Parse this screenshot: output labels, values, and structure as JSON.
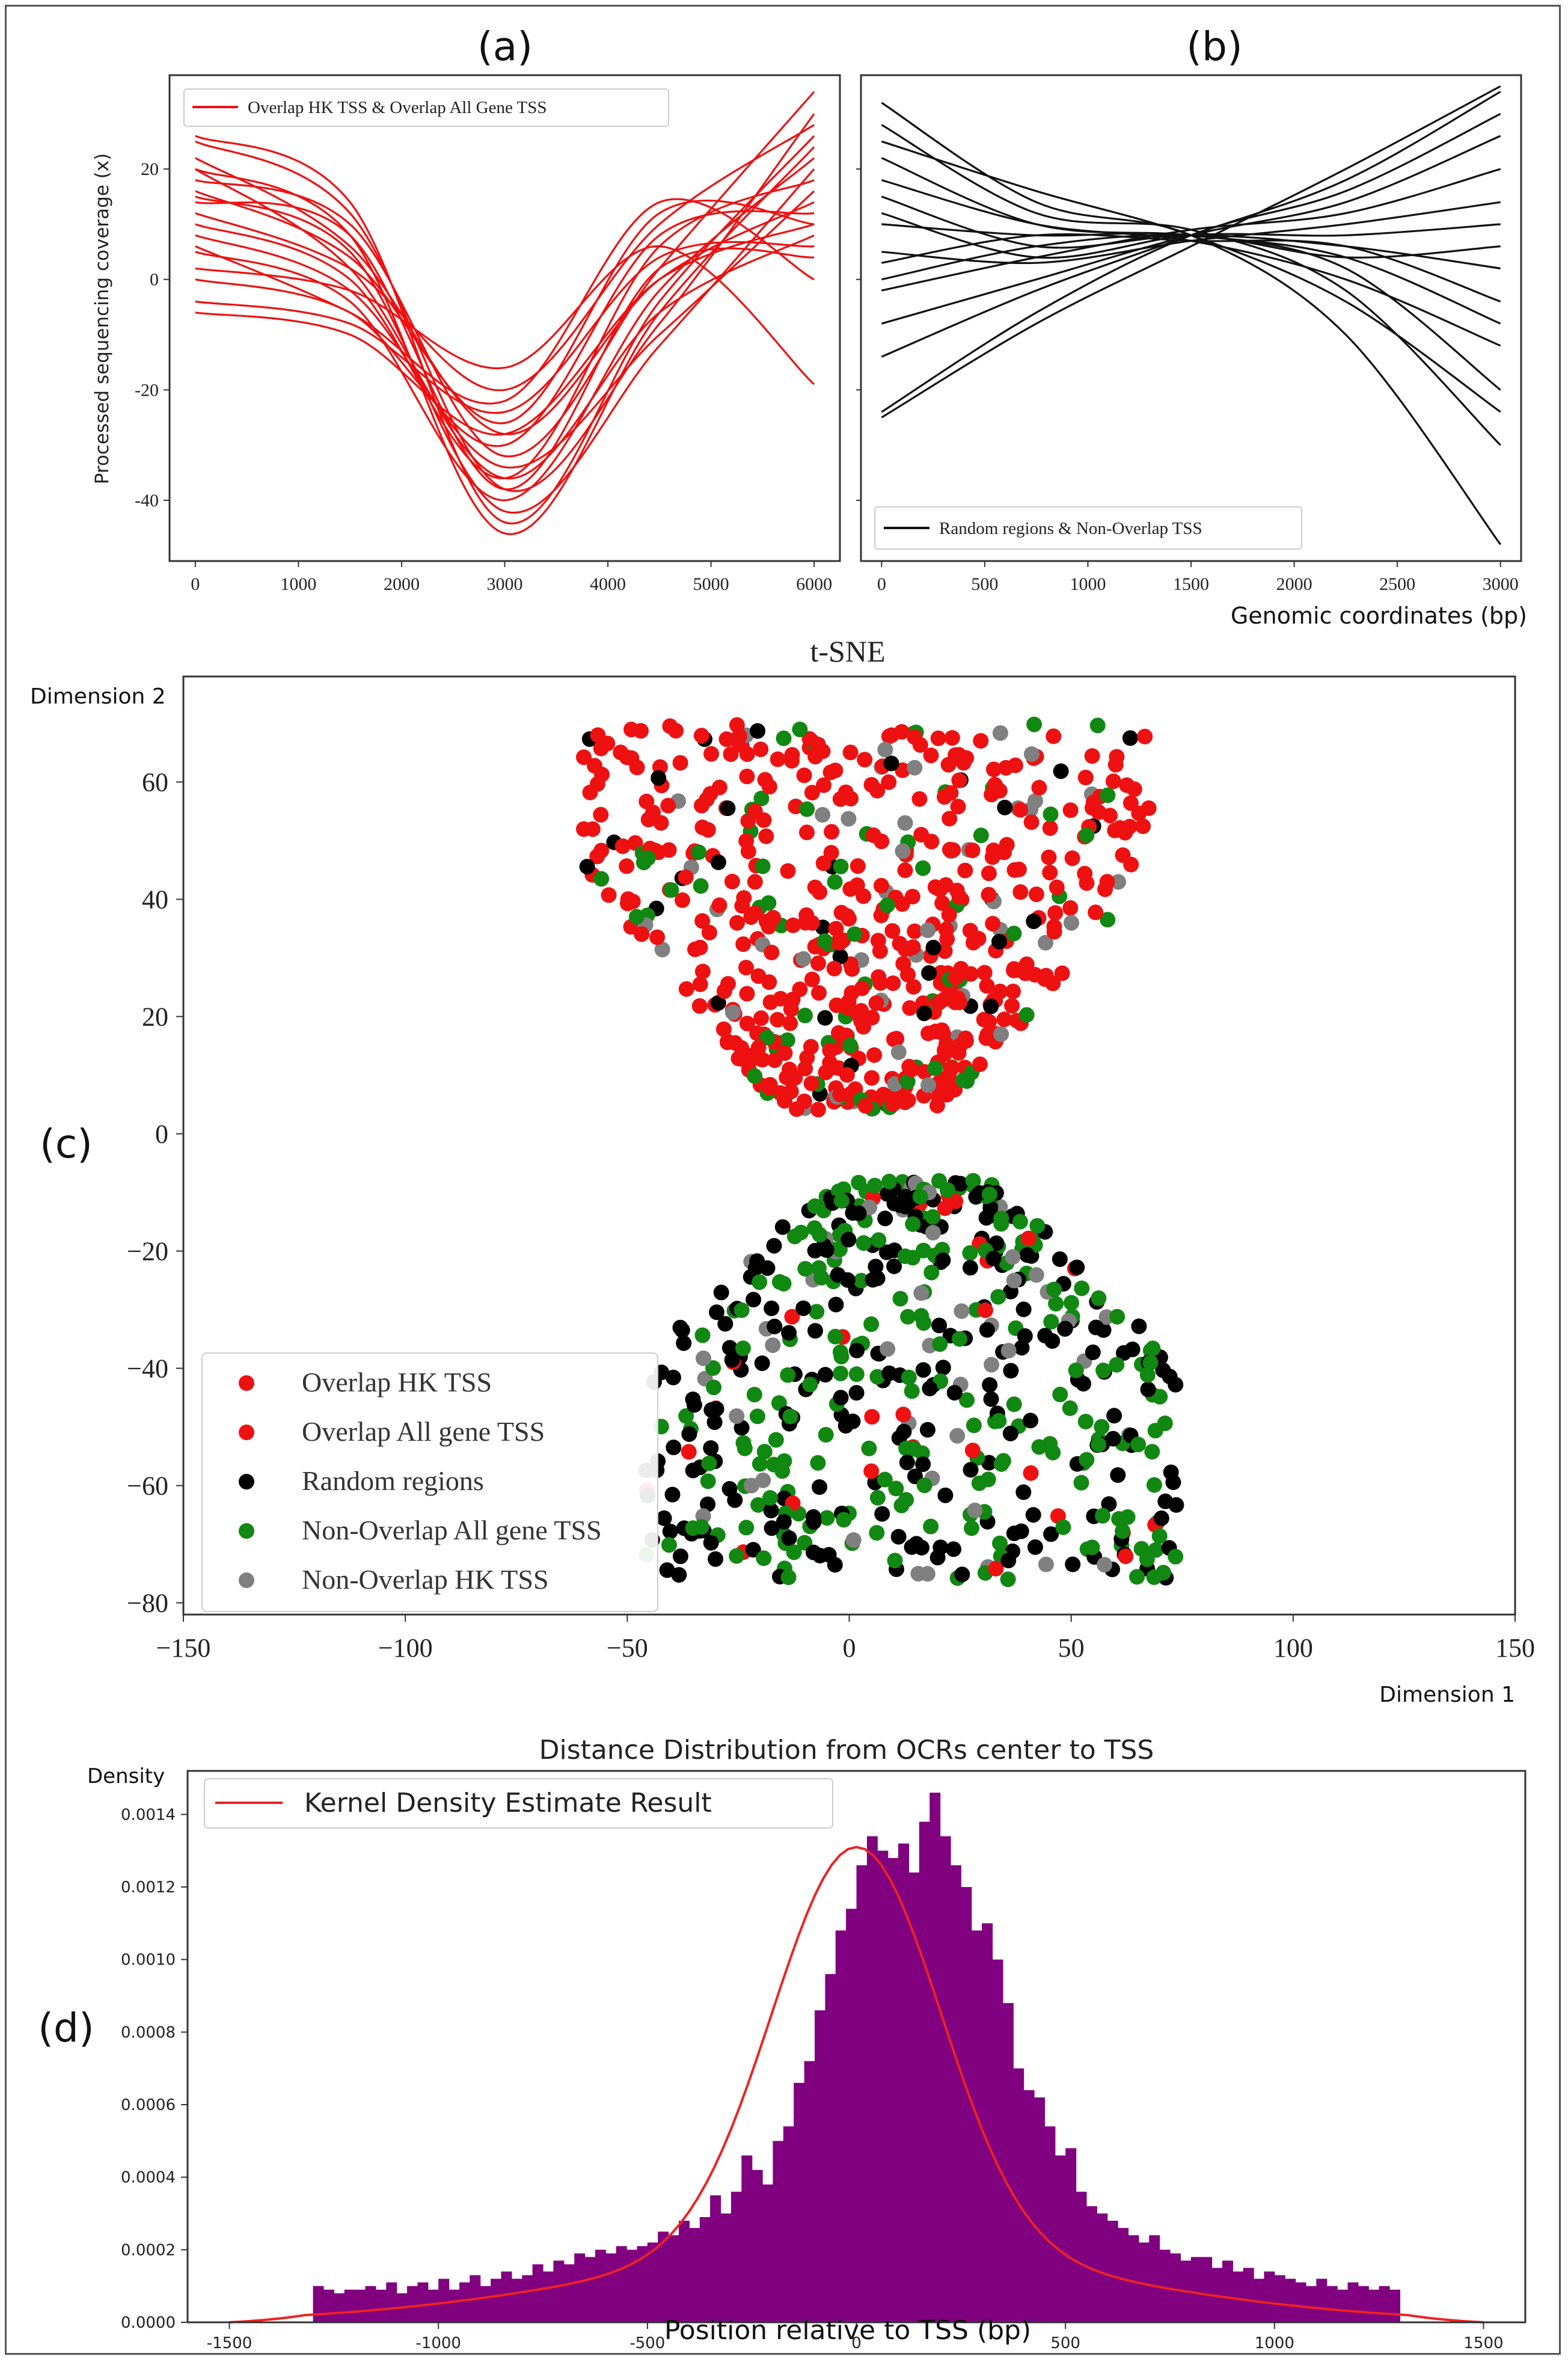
{
  "panels": {
    "a": {
      "tag": "(a)"
    },
    "b": {
      "tag": "(b)"
    },
    "c": {
      "tag": "(c)"
    },
    "d": {
      "tag": "(d)"
    }
  },
  "chart_data": [
    {
      "id": "a",
      "type": "line",
      "ylabel": "Processed sequencing coverage (x)",
      "xlabel": "",
      "legend": "Overlap HK TSS & Overlap All Gene TSS",
      "legend_position": "top-left",
      "color": "#ee1111",
      "xlim": [
        -250,
        6250
      ],
      "ylim": [
        -51,
        37
      ],
      "xticks": [
        0,
        1000,
        2000,
        3000,
        4000,
        5000,
        6000
      ],
      "yticks": [
        -40,
        -20,
        0,
        20
      ],
      "series_sample_x": [
        0,
        1500,
        3000,
        4500,
        6000
      ],
      "series": [
        {
          "values": [
            25,
            12,
            -38,
            -8,
            30
          ]
        },
        {
          "values": [
            20,
            8,
            -46,
            -6,
            24
          ]
        },
        {
          "values": [
            18,
            10,
            -32,
            2,
            34
          ]
        },
        {
          "values": [
            15,
            5,
            -42,
            -12,
            20
          ]
        },
        {
          "values": [
            10,
            0,
            -36,
            6,
            18
          ]
        },
        {
          "values": [
            22,
            6,
            -28,
            0,
            14
          ]
        },
        {
          "values": [
            5,
            -4,
            -40,
            -2,
            22
          ]
        },
        {
          "values": [
            0,
            -6,
            -30,
            8,
            12
          ]
        },
        {
          "values": [
            12,
            2,
            -20,
            10,
            28
          ]
        },
        {
          "values": [
            -4,
            -8,
            -24,
            4,
            6
          ]
        },
        {
          "values": [
            8,
            -2,
            -34,
            -10,
            16
          ]
        },
        {
          "values": [
            16,
            4,
            -26,
            12,
            10
          ]
        },
        {
          "values": [
            26,
            14,
            -44,
            -4,
            26
          ]
        },
        {
          "values": [
            2,
            -2,
            -16,
            6,
            -19
          ]
        },
        {
          "values": [
            14,
            8,
            -38,
            2,
            4
          ]
        },
        {
          "values": [
            6,
            -6,
            -22,
            14,
            0
          ]
        },
        {
          "values": [
            20,
            2,
            -36,
            -6,
            8
          ]
        },
        {
          "values": [
            -6,
            -10,
            -28,
            0,
            10
          ]
        }
      ]
    },
    {
      "id": "b",
      "type": "line",
      "xlabel": "Genomic coordinates (bp)",
      "ylabel": "",
      "legend": "Random regions & Non-Overlap TSS",
      "legend_position": "bottom-left",
      "color": "#111111",
      "xlim": [
        -100,
        3100
      ],
      "ylim": [
        -51,
        37
      ],
      "xticks": [
        0,
        500,
        1000,
        1500,
        2000,
        2500,
        3000
      ],
      "series_sample_x": [
        0,
        750,
        1500,
        2250,
        3000
      ],
      "series": [
        {
          "values": [
            32,
            14,
            8,
            -10,
            -48
          ]
        },
        {
          "values": [
            -25,
            -8,
            6,
            20,
            35
          ]
        },
        {
          "values": [
            -24,
            -6,
            8,
            16,
            30
          ]
        },
        {
          "values": [
            28,
            12,
            9,
            -2,
            -30
          ]
        },
        {
          "values": [
            22,
            10,
            8,
            4,
            -8
          ]
        },
        {
          "values": [
            -8,
            0,
            8,
            14,
            26
          ]
        },
        {
          "values": [
            15,
            6,
            8,
            6,
            2
          ]
        },
        {
          "values": [
            5,
            3,
            7,
            10,
            14
          ]
        },
        {
          "values": [
            10,
            8,
            8,
            2,
            -20
          ]
        },
        {
          "values": [
            -2,
            4,
            9,
            12,
            20
          ]
        },
        {
          "values": [
            18,
            10,
            7,
            0,
            -12
          ]
        },
        {
          "values": [
            0,
            6,
            8,
            4,
            6
          ]
        },
        {
          "values": [
            25,
            16,
            8,
            -4,
            -24
          ]
        },
        {
          "values": [
            -14,
            -2,
            8,
            18,
            34
          ]
        },
        {
          "values": [
            12,
            4,
            8,
            8,
            10
          ]
        },
        {
          "values": [
            3,
            8,
            7,
            6,
            -4
          ]
        }
      ]
    },
    {
      "id": "c",
      "type": "scatter",
      "title": "t-SNE",
      "xlabel": "Dimension 1",
      "ylabel": "Dimension 2",
      "xlim": [
        -150,
        150
      ],
      "ylim": [
        -82,
        78
      ],
      "xticks": [
        -150,
        -100,
        -50,
        0,
        50,
        100,
        150
      ],
      "yticks": [
        -80,
        -60,
        -40,
        -20,
        0,
        20,
        40,
        60
      ],
      "legend_position": "lower-left",
      "legend": [
        {
          "label": "Overlap HK TSS",
          "color": "#ee1111"
        },
        {
          "label": "Overlap All gene TSS",
          "color": "#ee1111"
        },
        {
          "label": "Random regions",
          "color": "#000000"
        },
        {
          "label": "Non-Overlap All gene TSS",
          "color": "#118811"
        },
        {
          "label": "Non-Overlap HK TSS",
          "color": "#808080"
        }
      ],
      "clusters": [
        {
          "name": "upper",
          "x_range": [
            -64,
            64
          ],
          "y_range": [
            4,
            70
          ],
          "composition": {
            "red": 0.78,
            "green": 0.1,
            "black": 0.05,
            "gray": 0.07
          },
          "n": 620
        },
        {
          "name": "lower",
          "x_range": [
            -44,
            74
          ],
          "y_range": [
            -76,
            -8
          ],
          "composition": {
            "red": 0.07,
            "green": 0.43,
            "black": 0.42,
            "gray": 0.08
          },
          "n": 560
        }
      ]
    },
    {
      "id": "d",
      "type": "bar",
      "title": "Distance Distribution from OCRs center to TSS",
      "xlabel": "Position relative to TSS  (bp)",
      "ylabel": "Density",
      "legend": "Kernel Density Estimate Result",
      "legend_position": "top-left",
      "bar_color": "#800080",
      "kde_color": "#ee2222",
      "xlim": [
        -1600,
        1600
      ],
      "ylim": [
        0,
        0.00152
      ],
      "xticks": [
        -1500,
        -1000,
        -500,
        0,
        500,
        1000,
        1500
      ],
      "yticks": [
        "0.0000",
        "0.0002",
        "0.0004",
        "0.0006",
        "0.0008",
        "0.0010",
        "0.0012",
        "0.0014"
      ],
      "bin_start": -1300,
      "bin_width": 25,
      "values": [
        0.0001,
        9e-05,
        8e-05,
        9e-05,
        9e-05,
        0.0001,
        9e-05,
        0.00011,
        8e-05,
        0.0001,
        0.00011,
        9e-05,
        0.00012,
        9e-05,
        0.00011,
        0.00013,
        0.0001,
        0.00012,
        0.00014,
        0.00012,
        0.00013,
        0.00016,
        0.00014,
        0.00017,
        0.00016,
        0.00019,
        0.00018,
        0.0002,
        0.00019,
        0.00021,
        0.0002,
        0.00021,
        0.00022,
        0.00025,
        0.00024,
        0.00028,
        0.00026,
        0.00029,
        0.00035,
        0.0003,
        0.00036,
        0.00046,
        0.00042,
        0.00038,
        0.0005,
        0.00054,
        0.00066,
        0.00072,
        0.00086,
        0.00096,
        0.00108,
        0.00114,
        0.00126,
        0.00134,
        0.0013,
        0.00128,
        0.00132,
        0.00124,
        0.00138,
        0.00146,
        0.00134,
        0.00126,
        0.0012,
        0.00108,
        0.0011,
        0.001,
        0.00088,
        0.0007,
        0.00064,
        0.00062,
        0.00054,
        0.00046,
        0.00048,
        0.00036,
        0.00032,
        0.0003,
        0.00028,
        0.00026,
        0.00024,
        0.00022,
        0.00024,
        0.0002,
        0.00019,
        0.00017,
        0.00018,
        0.00018,
        0.00015,
        0.00017,
        0.00014,
        0.00015,
        0.00012,
        0.00014,
        0.00013,
        0.00012,
        0.00011,
        0.0001,
        0.00012,
        0.0001,
        9e-05,
        0.00011,
        0.0001,
        9e-05,
        0.0001,
        9e-05
      ],
      "kde": {
        "peak": 0.00131,
        "center": 0,
        "narrow_sigma": 200,
        "narrow_weight": 0.00112,
        "wide_sigma": 620,
        "wide_weight": 0.00019
      }
    }
  ]
}
